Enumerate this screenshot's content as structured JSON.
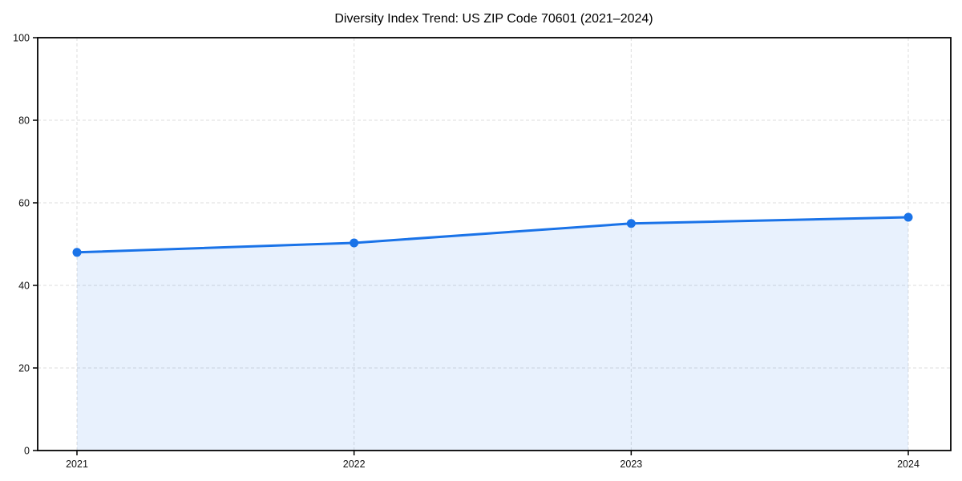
{
  "figure": {
    "background_color": "#ffffff"
  },
  "chart_data": {
    "type": "area",
    "title": "Diversity Index Trend: US ZIP Code 70601 (2021–2024)",
    "categories": [
      "2021",
      "2022",
      "2023",
      "2024"
    ],
    "values": [
      48,
      50.3,
      55,
      56.5
    ],
    "xlabel": "",
    "ylabel": "",
    "ylim": [
      0,
      100
    ],
    "yticks": [
      0,
      20,
      40,
      60,
      80,
      100
    ],
    "grid": true,
    "grid_style": "dashed",
    "legend_position": "none",
    "line_color": "#1a73e8",
    "marker_shape": "circle",
    "fill_color": "#1a73e8",
    "fill_opacity": 0.1,
    "grid_color": "#dcdcdc",
    "axis_color": "#000000",
    "tick_label_color": "#111111",
    "title_color": "#000000"
  }
}
